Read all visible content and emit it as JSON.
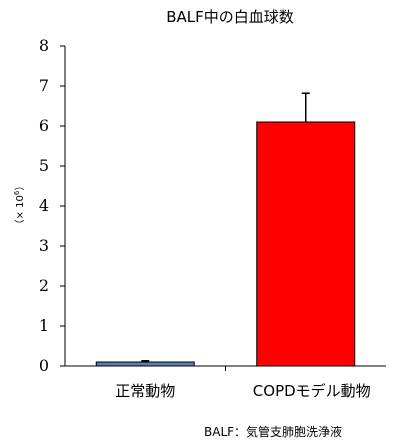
{
  "chart_data": {
    "type": "bar",
    "title": "BALF中の白血球数",
    "ylabel_prefix": "（× 10",
    "ylabel_exp": "6",
    "ylabel_suffix": "）",
    "categories": [
      "正常動物",
      "COPDモデル動物"
    ],
    "values": [
      0.1,
      6.1
    ],
    "errors": [
      0.03,
      0.72
    ],
    "ylim": [
      0,
      8
    ],
    "yticks": [
      "0",
      "1",
      "2",
      "3",
      "4",
      "5",
      "6",
      "7",
      "8"
    ],
    "grid": false,
    "legend": "none",
    "colors": [
      "#5b7fb0",
      "#ff0000"
    ],
    "footnote": "BALF：気管支肺胞洗浄液"
  }
}
